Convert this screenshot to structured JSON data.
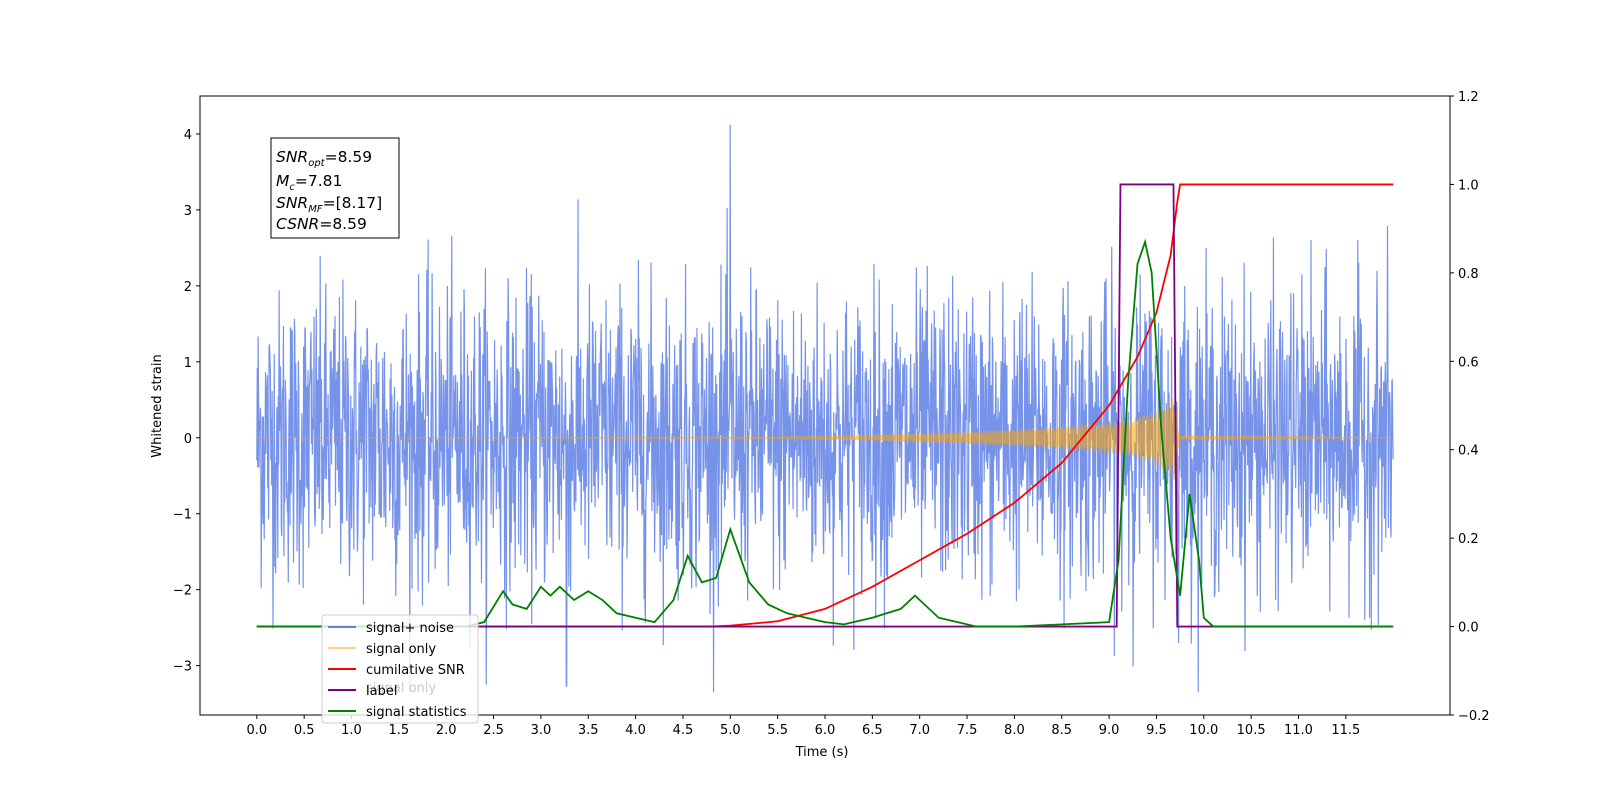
{
  "chart_data": {
    "type": "line",
    "xlabel": "Time (s)",
    "ylabel": "Whitened strain",
    "xlim": [
      -0.6,
      12.6
    ],
    "ylim": [
      -3.65,
      4.5
    ],
    "y2lim": [
      -0.2,
      1.2
    ],
    "x_ticks": [
      "0.0",
      "0.5",
      "1.0",
      "1.5",
      "2.0",
      "2.5",
      "3.0",
      "3.5",
      "4.0",
      "4.5",
      "5.0",
      "5.5",
      "6.0",
      "6.5",
      "7.0",
      "7.5",
      "8.0",
      "8.5",
      "9.0",
      "9.5",
      "10.0",
      "10.5",
      "11.0",
      "11.5"
    ],
    "y_ticks": [
      "−3",
      "−2",
      "−1",
      "0",
      "1",
      "2",
      "3",
      "4"
    ],
    "y2_ticks": [
      "−0.2",
      "0.0",
      "0.2",
      "0.4",
      "0.6",
      "0.8",
      "1.0",
      "1.2"
    ],
    "annotation": {
      "snr_opt": {
        "sym": "SNR",
        "sub": "opt",
        "value": "=8.59"
      },
      "mc": {
        "sym": "M",
        "sub": "c",
        "value": "=7.81"
      },
      "snr_mf": {
        "sym": "SNR",
        "sub": "MF",
        "value": "=[8.17]"
      },
      "csnr": {
        "sym": "CSNR",
        "value": "=8.59"
      }
    },
    "legend": {
      "placement": "lower-left",
      "entries": [
        {
          "label": "signal+ noise",
          "color": "#4169e1"
        },
        {
          "label": "signal only",
          "color": "#ffa500"
        },
        {
          "label": "cumilative SNR",
          "color": "#ff0000"
        },
        {
          "label": "label",
          "color": "#800080"
        },
        {
          "label": "signal statistics",
          "color": "#008000"
        }
      ],
      "overlapped_text": "signal only"
    },
    "series": [
      {
        "name": "signal+ noise",
        "axis": "left",
        "color": "#4169e1",
        "x_range": [
          0.0,
          12.0
        ],
        "envelope": {
          "typical_abs": 2.3,
          "max": 4.12,
          "min": -3.27,
          "max_at": 5.0,
          "min_at": 3.27
        }
      },
      {
        "name": "signal only",
        "axis": "left",
        "color": "#ffa500",
        "envelope_x": [
          0.0,
          5.5,
          6.5,
          7.5,
          8.0,
          8.5,
          9.0,
          9.25,
          9.5,
          9.6,
          9.7,
          9.72,
          9.75,
          12.0
        ],
        "envelope_amp": [
          0.0,
          0.01,
          0.04,
          0.08,
          0.11,
          0.15,
          0.21,
          0.26,
          0.36,
          0.45,
          0.6,
          0.2,
          0.03,
          0.0
        ]
      },
      {
        "name": "cumilative SNR",
        "axis": "right",
        "color": "#ff0000",
        "x": [
          0.0,
          4.8,
          5.0,
          5.5,
          6.0,
          6.5,
          7.0,
          7.5,
          8.0,
          8.5,
          9.0,
          9.3,
          9.5,
          9.65,
          9.72,
          9.75,
          12.0
        ],
        "values": [
          0.0,
          0.0,
          0.002,
          0.012,
          0.04,
          0.09,
          0.15,
          0.21,
          0.28,
          0.37,
          0.5,
          0.61,
          0.71,
          0.84,
          0.96,
          1.0,
          1.0
        ]
      },
      {
        "name": "label",
        "axis": "right",
        "color": "#800080",
        "x": [
          0.0,
          9.08,
          9.12,
          9.68,
          9.72,
          12.0
        ],
        "values": [
          0.0,
          0.0,
          1.0,
          1.0,
          0.0,
          0.0
        ]
      },
      {
        "name": "signal statistics",
        "axis": "right",
        "color": "#008000",
        "x": [
          0.0,
          2.2,
          2.4,
          2.6,
          2.7,
          2.85,
          3.0,
          3.1,
          3.2,
          3.35,
          3.5,
          3.65,
          3.8,
          4.0,
          4.2,
          4.4,
          4.55,
          4.7,
          4.85,
          5.0,
          5.2,
          5.4,
          5.6,
          5.8,
          6.0,
          6.2,
          6.5,
          6.8,
          6.95,
          7.2,
          7.4,
          7.6,
          8.0,
          8.5,
          9.0,
          9.1,
          9.2,
          9.3,
          9.38,
          9.45,
          9.55,
          9.65,
          9.75,
          9.85,
          9.95,
          10.0,
          10.1,
          12.0
        ],
        "values": [
          0.0,
          0.0,
          0.01,
          0.08,
          0.05,
          0.04,
          0.09,
          0.07,
          0.09,
          0.06,
          0.08,
          0.06,
          0.03,
          0.02,
          0.01,
          0.06,
          0.16,
          0.1,
          0.11,
          0.22,
          0.1,
          0.05,
          0.03,
          0.02,
          0.01,
          0.005,
          0.02,
          0.04,
          0.07,
          0.02,
          0.01,
          0.0,
          0.0,
          0.005,
          0.01,
          0.15,
          0.55,
          0.82,
          0.87,
          0.8,
          0.45,
          0.2,
          0.07,
          0.3,
          0.15,
          0.02,
          0.0,
          0.0
        ]
      }
    ]
  }
}
